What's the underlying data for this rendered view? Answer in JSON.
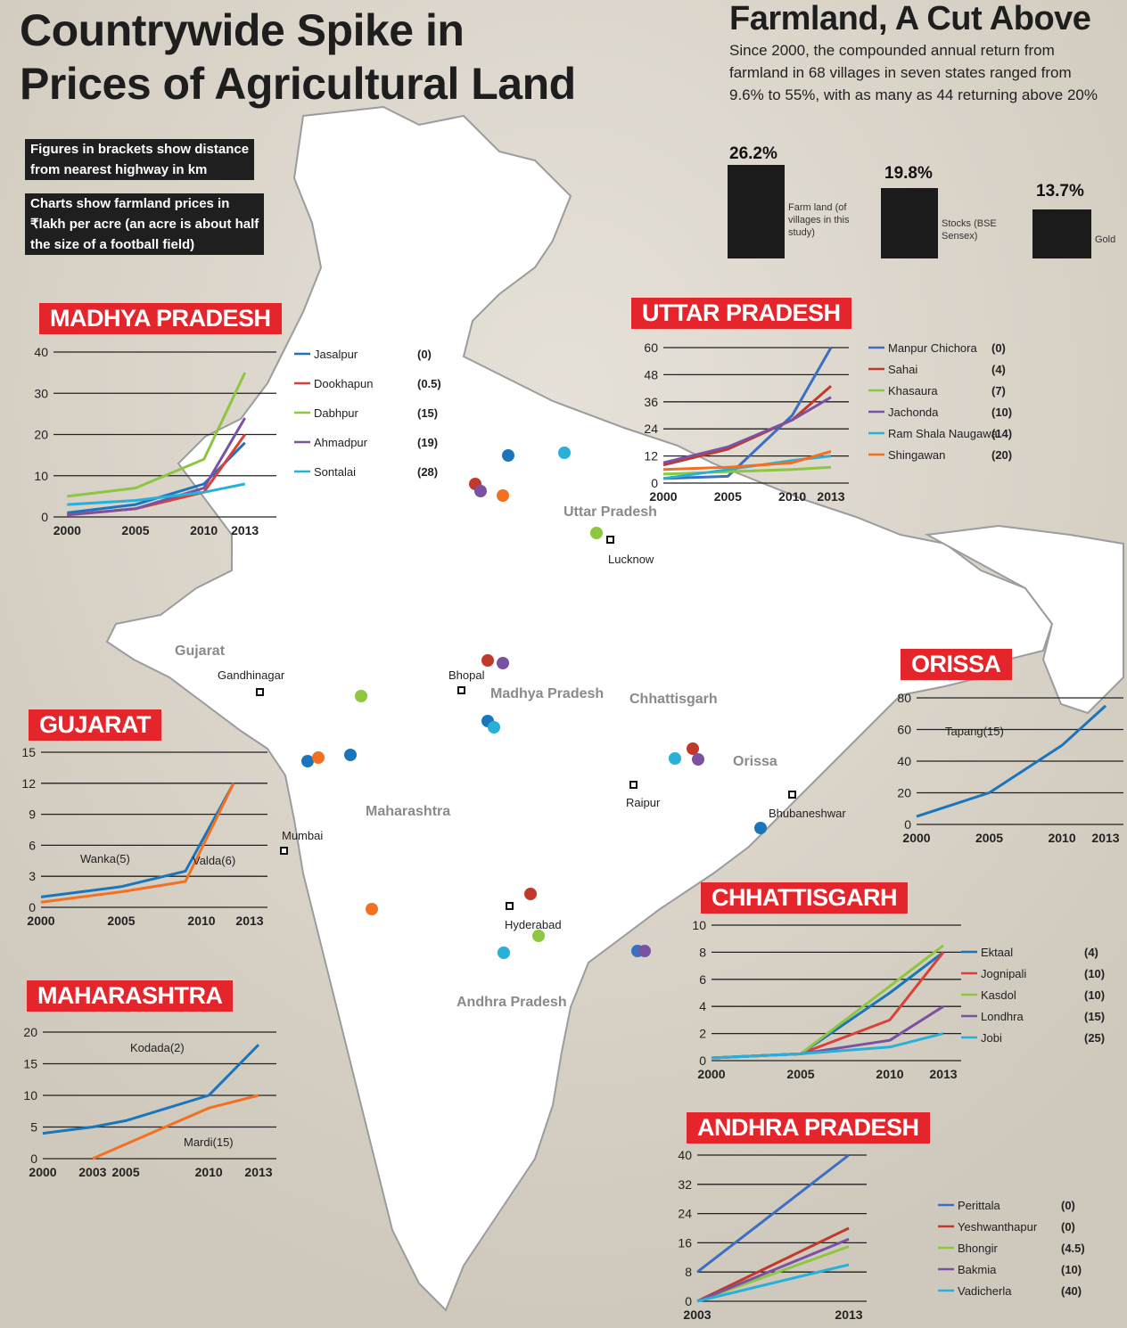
{
  "header": {
    "title_line1": "Countrywide Spike in",
    "title_line2": "Prices of Agricultural Land",
    "note1_line1": "Figures in brackets show distance",
    "note1_line2": "from nearest highway in km",
    "note2_line1": "Charts show farmland prices in",
    "note2_line2": "₹lakh per acre (an acre is about half",
    "note2_line3": "the size of a football field)"
  },
  "comparison": {
    "title": "Farmland, A Cut Above",
    "text": "Since 2000, the compounded annual return from farmland in 68 villages in seven states ranged from 9.6% to 55%, with as many as 44 returning above 20%",
    "bars": [
      {
        "value_label": "26.2%",
        "value": 26.2,
        "label": "Farm land (of villages in this study)"
      },
      {
        "value_label": "19.8%",
        "value": 19.8,
        "label": "Stocks (BSE Sensex)"
      },
      {
        "value_label": "13.7%",
        "value": 13.7,
        "label": "Gold"
      }
    ]
  },
  "map": {
    "states": [
      "Uttar Pradesh",
      "Gujarat",
      "Madhya Pradesh",
      "Chhattisgarh",
      "Orissa",
      "Maharashtra",
      "Andhra Pradesh"
    ],
    "cities": [
      "Lucknow",
      "Gandhinagar",
      "Bhopal",
      "Raipur",
      "Bhubaneshwar",
      "Mumbai",
      "Hyderabad"
    ]
  },
  "chart_data": [
    {
      "state": "MADHYA PRADESH",
      "type": "line",
      "ylim": [
        0,
        40
      ],
      "yticks": [
        0,
        10,
        20,
        30,
        40
      ],
      "xticks": [
        2000,
        2005,
        2010,
        2013
      ],
      "xlim": [
        1999,
        2014
      ],
      "series": [
        {
          "name": "Jasalpur",
          "dist": "(0)",
          "color": "#1b75bb",
          "points": [
            [
              2000,
              1
            ],
            [
              2005,
              3
            ],
            [
              2010,
              8
            ],
            [
              2013,
              18
            ]
          ]
        },
        {
          "name": "Dookhapun",
          "dist": "(0.5)",
          "color": "#d9413b",
          "points": [
            [
              2000,
              0.5
            ],
            [
              2005,
              2
            ],
            [
              2010,
              6
            ],
            [
              2013,
              20
            ]
          ]
        },
        {
          "name": "Dabhpur",
          "dist": "(15)",
          "color": "#8dc63f",
          "points": [
            [
              2000,
              5
            ],
            [
              2005,
              7
            ],
            [
              2010,
              14
            ],
            [
              2013,
              35
            ]
          ]
        },
        {
          "name": "Ahmadpur",
          "dist": "(19)",
          "color": "#7b52a3",
          "points": [
            [
              2000,
              0.5
            ],
            [
              2005,
              2
            ],
            [
              2010,
              7
            ],
            [
              2013,
              24
            ]
          ]
        },
        {
          "name": "Sontalai",
          "dist": "(28)",
          "color": "#27b1d8",
          "points": [
            [
              2000,
              3
            ],
            [
              2005,
              4
            ],
            [
              2010,
              6
            ],
            [
              2013,
              8
            ]
          ]
        }
      ]
    },
    {
      "state": "UTTAR PRADESH",
      "type": "line",
      "ylim": [
        0,
        60
      ],
      "yticks": [
        0,
        12,
        24,
        36,
        48,
        60
      ],
      "xticks": [
        2000,
        2005,
        2010,
        2013
      ],
      "xlim": [
        2000,
        2013
      ],
      "series": [
        {
          "name": "Manpur Chichora",
          "dist": "(0)",
          "color": "#3b6fc1",
          "points": [
            [
              2000,
              2
            ],
            [
              2005,
              3
            ],
            [
              2010,
              30
            ],
            [
              2013,
              60
            ]
          ]
        },
        {
          "name": "Sahai",
          "dist": "(4)",
          "color": "#c0392b",
          "points": [
            [
              2000,
              8
            ],
            [
              2005,
              15
            ],
            [
              2010,
              28
            ],
            [
              2013,
              43
            ]
          ]
        },
        {
          "name": "Khasaura",
          "dist": "(7)",
          "color": "#8dc63f",
          "points": [
            [
              2000,
              4
            ],
            [
              2005,
              5
            ],
            [
              2010,
              6
            ],
            [
              2013,
              7
            ]
          ]
        },
        {
          "name": "Jachonda",
          "dist": "(10)",
          "color": "#7b52a3",
          "points": [
            [
              2000,
              9
            ],
            [
              2005,
              16
            ],
            [
              2010,
              28
            ],
            [
              2013,
              38
            ]
          ]
        },
        {
          "name": "Ram Shala Naugawa",
          "dist": "(14)",
          "color": "#27b1d8",
          "points": [
            [
              2000,
              2
            ],
            [
              2005,
              6
            ],
            [
              2010,
              10
            ],
            [
              2013,
              12
            ]
          ]
        },
        {
          "name": "Shingawan",
          "dist": "(20)",
          "color": "#f37021",
          "points": [
            [
              2000,
              6
            ],
            [
              2005,
              7
            ],
            [
              2010,
              9
            ],
            [
              2013,
              14
            ]
          ]
        }
      ]
    },
    {
      "state": "GUJARAT",
      "type": "line",
      "ylim": [
        0,
        15
      ],
      "yticks": [
        0,
        3,
        6,
        9,
        12,
        15
      ],
      "xticks": [
        2000,
        2005,
        2010,
        2013
      ],
      "xlim": [
        2000,
        2013
      ],
      "series": [
        {
          "name": "Wanka",
          "dist": "(5)",
          "color": "#1b75bb",
          "points": [
            [
              2000,
              1
            ],
            [
              2005,
              2
            ],
            [
              2009,
              3.5
            ],
            [
              2012,
              12
            ]
          ]
        },
        {
          "name": "Valda",
          "dist": "(6)",
          "color": "#f37021",
          "points": [
            [
              2000,
              0.5
            ],
            [
              2005,
              1.5
            ],
            [
              2009,
              2.5
            ],
            [
              2012,
              12
            ]
          ]
        }
      ]
    },
    {
      "state": "ORISSA",
      "type": "line",
      "ylim": [
        0,
        80
      ],
      "yticks": [
        0,
        20,
        40,
        60,
        80
      ],
      "xticks": [
        2000,
        2005,
        2010,
        2013
      ],
      "xlim": [
        2000,
        2013
      ],
      "series": [
        {
          "name": "Tapang",
          "dist": "(15)",
          "color": "#1b75bb",
          "points": [
            [
              2000,
              5
            ],
            [
              2005,
              20
            ],
            [
              2010,
              50
            ],
            [
              2013,
              75
            ]
          ]
        }
      ]
    },
    {
      "state": "CHHATTISGARH",
      "type": "line",
      "ylim": [
        0,
        10
      ],
      "yticks": [
        0,
        2,
        4,
        6,
        8,
        10
      ],
      "xticks": [
        2000,
        2005,
        2010,
        2013
      ],
      "xlim": [
        2000,
        2013
      ],
      "series": [
        {
          "name": "Ektaal",
          "dist": "(4)",
          "color": "#1b75bb",
          "points": [
            [
              2000,
              0.2
            ],
            [
              2005,
              0.5
            ],
            [
              2010,
              5
            ],
            [
              2013,
              8
            ]
          ]
        },
        {
          "name": "Jognipali",
          "dist": "(10)",
          "color": "#d9413b",
          "points": [
            [
              2000,
              0.2
            ],
            [
              2005,
              0.5
            ],
            [
              2010,
              3
            ],
            [
              2013,
              8
            ]
          ]
        },
        {
          "name": "Kasdol",
          "dist": "(10)",
          "color": "#8dc63f",
          "points": [
            [
              2000,
              0.2
            ],
            [
              2005,
              0.5
            ],
            [
              2010,
              5.5
            ],
            [
              2013,
              8.5
            ]
          ]
        },
        {
          "name": "Londhra",
          "dist": "(15)",
          "color": "#7b52a3",
          "points": [
            [
              2000,
              0.2
            ],
            [
              2005,
              0.5
            ],
            [
              2010,
              1.5
            ],
            [
              2013,
              4
            ]
          ]
        },
        {
          "name": "Jobi",
          "dist": "(25)",
          "color": "#27b1d8",
          "points": [
            [
              2000,
              0.2
            ],
            [
              2005,
              0.5
            ],
            [
              2010,
              1
            ],
            [
              2013,
              2
            ]
          ]
        }
      ]
    },
    {
      "state": "MAHARASHTRA",
      "type": "line",
      "ylim": [
        0,
        20
      ],
      "yticks": [
        0,
        5,
        10,
        15,
        20
      ],
      "xticks": [
        2000,
        2003,
        2005,
        2010,
        2013
      ],
      "xlim": [
        2000,
        2013
      ],
      "series": [
        {
          "name": "Kodada",
          "dist": "(2)",
          "color": "#1b75bb",
          "points": [
            [
              2000,
              4
            ],
            [
              2003,
              5
            ],
            [
              2005,
              6
            ],
            [
              2010,
              10
            ],
            [
              2013,
              18
            ]
          ]
        },
        {
          "name": "Mardi",
          "dist": "(15)",
          "color": "#f37021",
          "points": [
            [
              2003,
              0
            ],
            [
              2010,
              8
            ],
            [
              2013,
              10
            ]
          ]
        }
      ]
    },
    {
      "state": "ANDHRA PRADESH",
      "type": "line",
      "ylim": [
        0,
        40
      ],
      "yticks": [
        0,
        8,
        16,
        24,
        32,
        40
      ],
      "xticks": [
        2003,
        2013
      ],
      "xlim": [
        2003,
        2013
      ],
      "series": [
        {
          "name": "Perittala",
          "dist": "(0)",
          "color": "#3b6fc1",
          "points": [
            [
              2003,
              8
            ],
            [
              2013,
              40
            ]
          ]
        },
        {
          "name": "Yeshwanthapur",
          "dist": "(0)",
          "color": "#c0392b",
          "points": [
            [
              2003,
              0
            ],
            [
              2013,
              20
            ]
          ]
        },
        {
          "name": "Bhongir",
          "dist": "(4.5)",
          "color": "#8dc63f",
          "points": [
            [
              2003,
              0
            ],
            [
              2013,
              15
            ]
          ]
        },
        {
          "name": "Bakmia",
          "dist": "(10)",
          "color": "#7b52a3",
          "points": [
            [
              2003,
              0
            ],
            [
              2013,
              17
            ]
          ]
        },
        {
          "name": "Vadicherla",
          "dist": "(40)",
          "color": "#27b1d8",
          "points": [
            [
              2003,
              0
            ],
            [
              2013,
              10
            ]
          ]
        }
      ]
    }
  ]
}
